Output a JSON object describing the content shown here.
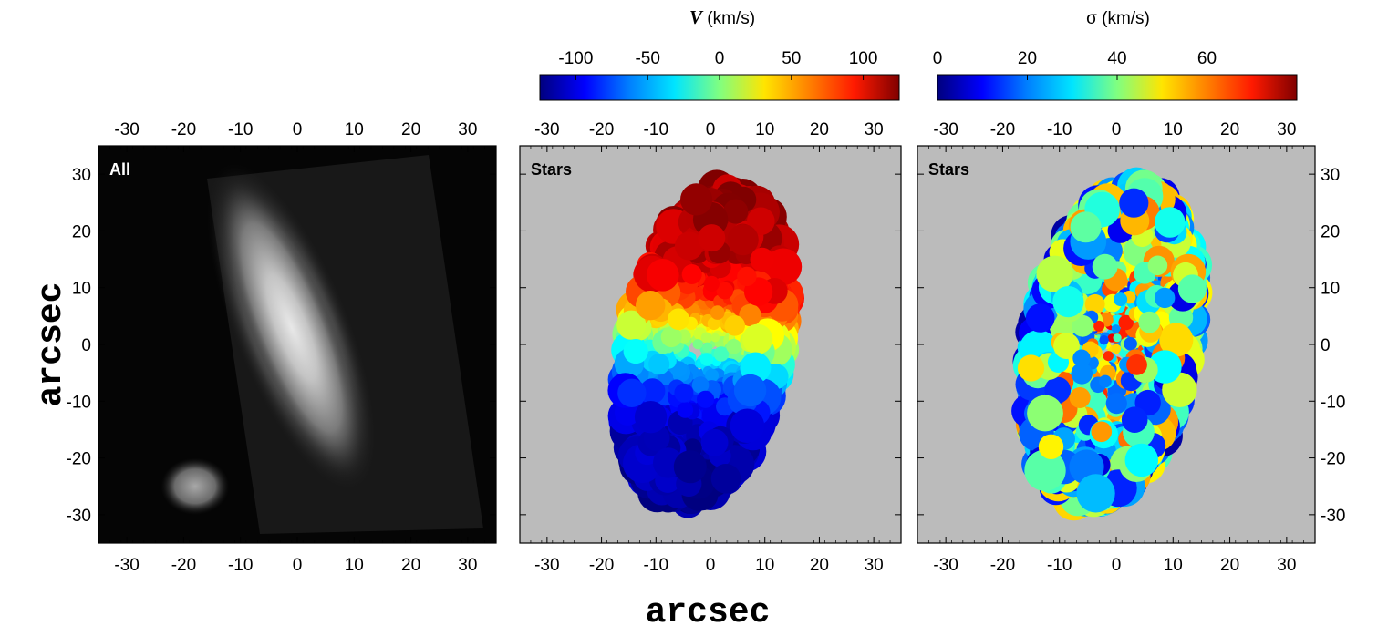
{
  "chart_data": {
    "type": "heatmap",
    "shared_xlabel": "arcsec",
    "shared_ylabel": "arcsec",
    "panels": [
      {
        "id": "all",
        "label": "All",
        "kind": "image",
        "colormap": "gray",
        "xlim": [
          -35,
          35
        ],
        "ylim": [
          -35,
          35
        ],
        "xticks": [
          "-30",
          "-20",
          "-10",
          "0",
          "10",
          "20",
          "30"
        ],
        "yticks": [
          "30",
          "20",
          "10",
          "0",
          "-10",
          "-20",
          "-30"
        ],
        "galaxy_main": {
          "center": [
            -1,
            3
          ],
          "semi_major": 28,
          "semi_minor": 7.5,
          "pa_deg": 22
        },
        "galaxy_companion": {
          "center": [
            -18,
            -25
          ],
          "semi_major": 6,
          "semi_minor": 5,
          "pa_deg": 0
        }
      },
      {
        "id": "velocity",
        "label": "Stars",
        "kind": "voronoi-map",
        "quantity": "V",
        "unit": "(km/s)",
        "colormap": "jet",
        "clim": [
          -125,
          125
        ],
        "colorbar_ticks": [
          "-100",
          "-50",
          "0",
          "50",
          "100"
        ],
        "xlim": [
          -35,
          35
        ],
        "ylim": [
          -35,
          35
        ],
        "xticks": [
          "-30",
          "-20",
          "-10",
          "0",
          "10",
          "20",
          "30"
        ],
        "peak_positive": {
          "x": -3,
          "y": 22,
          "value": 125
        },
        "peak_negative": {
          "x": 5,
          "y": -22,
          "value": -125
        },
        "missing_color": "#bbbbbb"
      },
      {
        "id": "dispersion",
        "label": "Stars",
        "kind": "voronoi-map",
        "quantity": "σ",
        "unit": "(km/s)",
        "colormap": "jet",
        "clim": [
          0,
          80
        ],
        "colorbar_ticks": [
          "0",
          "20",
          "40",
          "60"
        ],
        "xlim": [
          -35,
          35
        ],
        "ylim": [
          -35,
          35
        ],
        "xticks": [
          "-30",
          "-20",
          "-10",
          "0",
          "10",
          "20",
          "30"
        ],
        "yticks": [
          "30",
          "20",
          "10",
          "0",
          "-10",
          "-20",
          "-30"
        ],
        "center_value": 45,
        "outer_value": 30,
        "missing_color": "#bbbbbb"
      }
    ]
  },
  "colors": {
    "background": "#bbbbbb",
    "axes": "#000000"
  }
}
